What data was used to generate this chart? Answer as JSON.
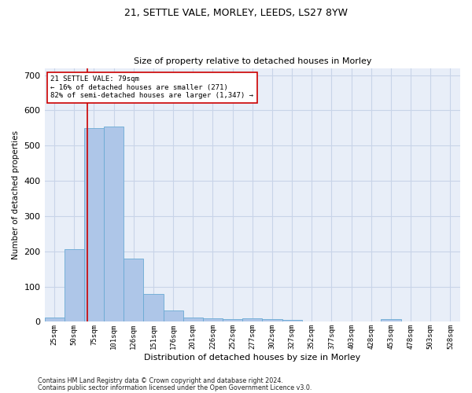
{
  "title1": "21, SETTLE VALE, MORLEY, LEEDS, LS27 8YW",
  "title2": "Size of property relative to detached houses in Morley",
  "xlabel": "Distribution of detached houses by size in Morley",
  "ylabel": "Number of detached properties",
  "footer1": "Contains HM Land Registry data © Crown copyright and database right 2024.",
  "footer2": "Contains public sector information licensed under the Open Government Licence v3.0.",
  "annotation_line1": "21 SETTLE VALE: 79sqm",
  "annotation_line2": "← 16% of detached houses are smaller (271)",
  "annotation_line3": "82% of semi-detached houses are larger (1,347) →",
  "bar_color": "#aec6e8",
  "bar_edge_color": "#6aaad4",
  "vline_color": "#cc0000",
  "grid_color": "#c8d4e8",
  "background_color": "#e8eef8",
  "bins": [
    25,
    50,
    75,
    101,
    126,
    151,
    176,
    201,
    226,
    252,
    277,
    302,
    327,
    352,
    377,
    403,
    428,
    453,
    478,
    503,
    528
  ],
  "bin_labels": [
    "25sqm",
    "50sqm",
    "75sqm",
    "101sqm",
    "126sqm",
    "151sqm",
    "176sqm",
    "201sqm",
    "226sqm",
    "252sqm",
    "277sqm",
    "302sqm",
    "327sqm",
    "352sqm",
    "377sqm",
    "403sqm",
    "428sqm",
    "453sqm",
    "478sqm",
    "503sqm",
    "528sqm"
  ],
  "values": [
    12,
    205,
    550,
    555,
    180,
    78,
    33,
    13,
    9,
    8,
    9,
    7,
    5,
    0,
    0,
    0,
    0,
    7,
    0,
    0,
    0
  ],
  "vline_x": 79,
  "ylim": [
    0,
    720
  ],
  "yticks": [
    0,
    100,
    200,
    300,
    400,
    500,
    600,
    700
  ]
}
